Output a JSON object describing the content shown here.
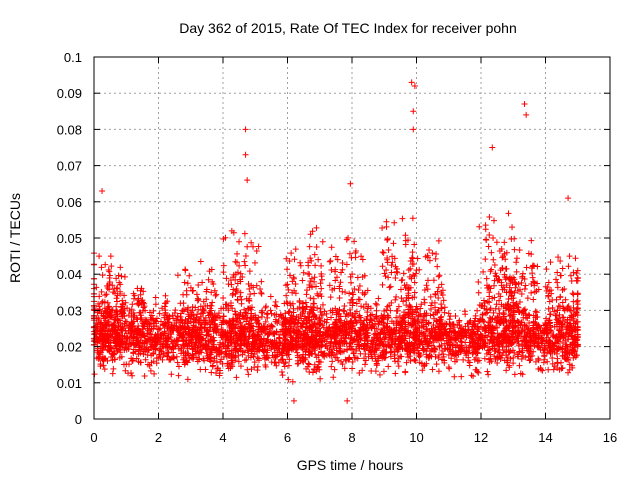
{
  "chart_data": {
    "type": "scatter",
    "title": "Day 362 of 2015, Rate Of TEC Index for receiver pohn",
    "xlabel": "GPS time / hours",
    "ylabel": "ROTI / TECUs",
    "xlim": [
      0,
      16
    ],
    "ylim": [
      0,
      0.1
    ],
    "grid": true,
    "marker": "+",
    "color": "#ff0000",
    "x_ticks": [
      0,
      2,
      4,
      6,
      8,
      10,
      12,
      14,
      16
    ],
    "x_tick_labels": [
      "0",
      "2",
      "4",
      "6",
      "8",
      "10",
      "12",
      "14",
      "16"
    ],
    "y_ticks": [
      0,
      0.01,
      0.02,
      0.03,
      0.04,
      0.05,
      0.06,
      0.07,
      0.08,
      0.09,
      0.1
    ],
    "y_tick_labels": [
      "0",
      "0.01",
      "0.02",
      "0.03",
      "0.04",
      "0.05",
      "0.06",
      "0.07",
      "0.08",
      "0.09",
      "0.1"
    ],
    "series": [
      {
        "name": "ROTI",
        "x_range": [
          0,
          15
        ],
        "typical_range": [
          0.008,
          0.04
        ],
        "notable_points": [
          {
            "x": 0.25,
            "y": 0.063
          },
          {
            "x": 4.7,
            "y": 0.08
          },
          {
            "x": 4.7,
            "y": 0.073
          },
          {
            "x": 4.75,
            "y": 0.066
          },
          {
            "x": 7.95,
            "y": 0.065
          },
          {
            "x": 9.85,
            "y": 0.093
          },
          {
            "x": 9.95,
            "y": 0.092
          },
          {
            "x": 9.9,
            "y": 0.085
          },
          {
            "x": 9.9,
            "y": 0.08
          },
          {
            "x": 12.35,
            "y": 0.075
          },
          {
            "x": 13.35,
            "y": 0.087
          },
          {
            "x": 13.4,
            "y": 0.084
          },
          {
            "x": 14.7,
            "y": 0.061
          },
          {
            "x": 6.2,
            "y": 0.005
          },
          {
            "x": 7.85,
            "y": 0.005
          }
        ]
      }
    ]
  }
}
